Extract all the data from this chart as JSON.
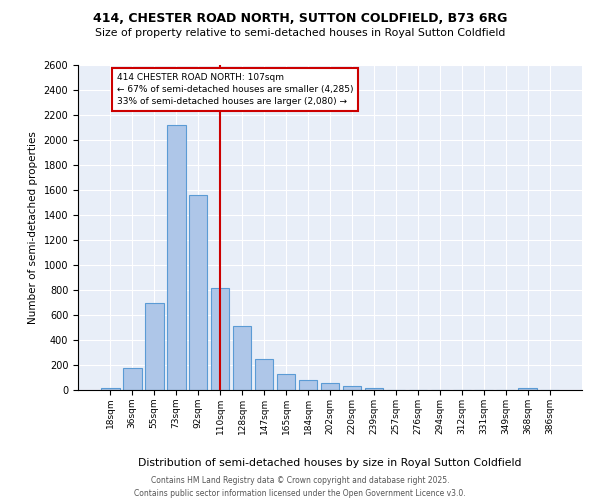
{
  "title1": "414, CHESTER ROAD NORTH, SUTTON COLDFIELD, B73 6RG",
  "title2": "Size of property relative to semi-detached houses in Royal Sutton Coldfield",
  "xlabel": "Distribution of semi-detached houses by size in Royal Sutton Coldfield",
  "ylabel": "Number of semi-detached properties",
  "footnote": "Contains HM Land Registry data © Crown copyright and database right 2025.\nContains public sector information licensed under the Open Government Licence v3.0.",
  "bar_labels": [
    "18sqm",
    "36sqm",
    "55sqm",
    "73sqm",
    "92sqm",
    "110sqm",
    "128sqm",
    "147sqm",
    "165sqm",
    "184sqm",
    "202sqm",
    "220sqm",
    "239sqm",
    "257sqm",
    "276sqm",
    "294sqm",
    "312sqm",
    "331sqm",
    "349sqm",
    "368sqm",
    "386sqm"
  ],
  "bar_values": [
    20,
    180,
    700,
    2120,
    1560,
    820,
    510,
    250,
    130,
    80,
    60,
    35,
    20,
    0,
    0,
    0,
    0,
    0,
    0,
    15,
    0
  ],
  "bar_color": "#aec6e8",
  "bar_edge_color": "#5b9bd5",
  "vline_x": 5,
  "annotation_text": "414 CHESTER ROAD NORTH: 107sqm\n← 67% of semi-detached houses are smaller (4,285)\n33% of semi-detached houses are larger (2,080) →",
  "ylim": [
    0,
    2600
  ],
  "yticks": [
    0,
    200,
    400,
    600,
    800,
    1000,
    1200,
    1400,
    1600,
    1800,
    2000,
    2200,
    2400,
    2600
  ],
  "vline_color": "#cc0000",
  "annotation_box_color": "#cc0000",
  "background_color": "#e8eef8"
}
